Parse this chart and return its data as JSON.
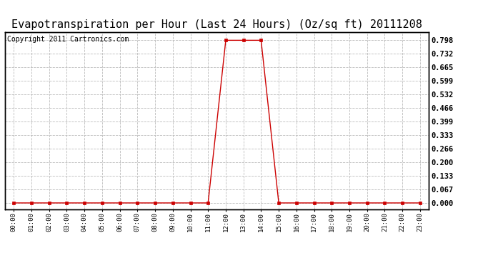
{
  "title": "Evapotranspiration per Hour (Last 24 Hours) (Oz/sq ft) 20111208",
  "copyright": "Copyright 2011 Cartronics.com",
  "x_labels": [
    "00:00",
    "01:00",
    "02:00",
    "03:00",
    "04:00",
    "05:00",
    "06:00",
    "07:00",
    "08:00",
    "09:00",
    "10:00",
    "11:00",
    "12:00",
    "13:00",
    "14:00",
    "15:00",
    "16:00",
    "17:00",
    "18:00",
    "19:00",
    "20:00",
    "21:00",
    "22:00",
    "23:00"
  ],
  "y_values": [
    0.0,
    0.0,
    0.0,
    0.0,
    0.0,
    0.0,
    0.0,
    0.0,
    0.0,
    0.0,
    0.0,
    0.0,
    0.798,
    0.798,
    0.798,
    0.0,
    0.0,
    0.0,
    0.0,
    0.0,
    0.0,
    0.0,
    0.0,
    0.0
  ],
  "yticks": [
    0.0,
    0.067,
    0.133,
    0.2,
    0.266,
    0.333,
    0.399,
    0.466,
    0.532,
    0.599,
    0.665,
    0.732,
    0.798
  ],
  "ymax": 0.798,
  "line_color": "#cc0000",
  "marker_color": "#cc0000",
  "bg_color": "#ffffff",
  "grid_color": "#bbbbbb",
  "title_fontsize": 11,
  "copyright_fontsize": 7
}
